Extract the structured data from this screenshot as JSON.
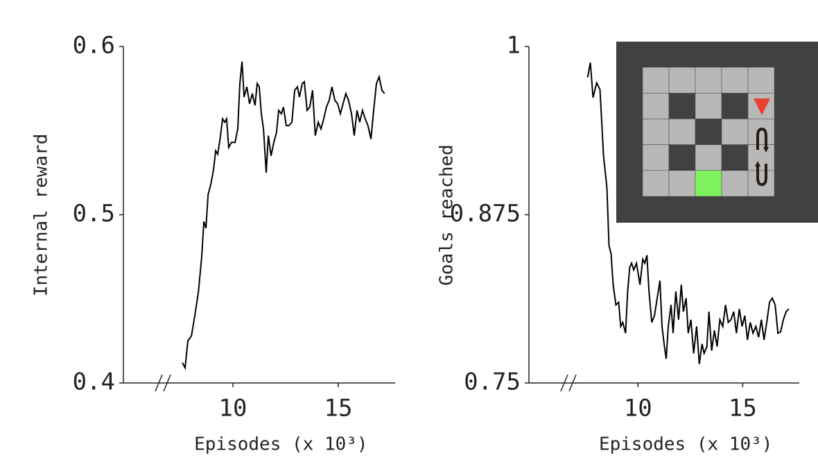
{
  "chart_data": [
    {
      "type": "line",
      "ylabel": "Internal reward",
      "xlabel": "Episodes (x 10³)",
      "xlim": [
        4.8,
        17.7
      ],
      "xticks": [
        10,
        15
      ],
      "ylim": [
        0.4,
        0.6
      ],
      "yticks": [
        0.4,
        0.5,
        0.6
      ],
      "color": "#000000",
      "x": [
        7.6,
        7.73,
        7.86,
        8.03,
        8.19,
        8.36,
        8.52,
        8.62,
        8.72,
        8.82,
        8.95,
        9.08,
        9.18,
        9.28,
        9.41,
        9.51,
        9.61,
        9.7,
        9.8,
        9.93,
        10.1,
        10.23,
        10.33,
        10.43,
        10.53,
        10.66,
        10.79,
        10.92,
        11.05,
        11.15,
        11.25,
        11.35,
        11.45,
        11.58,
        11.68,
        11.81,
        11.94,
        12.07,
        12.17,
        12.3,
        12.4,
        12.53,
        12.66,
        12.8,
        12.93,
        13.06,
        13.16,
        13.29,
        13.39,
        13.52,
        13.65,
        13.78,
        13.91,
        14.05,
        14.18,
        14.31,
        14.44,
        14.57,
        14.7,
        14.84,
        14.97,
        15.1,
        15.23,
        15.36,
        15.49,
        15.63,
        15.76,
        15.89,
        16.02,
        16.15,
        16.28,
        16.41,
        16.55,
        16.68,
        16.81,
        16.94,
        17.07,
        17.2
      ],
      "values": [
        0.412,
        0.409,
        0.425,
        0.428,
        0.44,
        0.454,
        0.475,
        0.496,
        0.492,
        0.512,
        0.518,
        0.527,
        0.538,
        0.536,
        0.547,
        0.557,
        0.555,
        0.557,
        0.54,
        0.543,
        0.543,
        0.551,
        0.578,
        0.591,
        0.57,
        0.576,
        0.566,
        0.572,
        0.565,
        0.578,
        0.576,
        0.56,
        0.551,
        0.525,
        0.547,
        0.535,
        0.543,
        0.549,
        0.562,
        0.56,
        0.564,
        0.553,
        0.553,
        0.555,
        0.574,
        0.576,
        0.57,
        0.578,
        0.579,
        0.562,
        0.564,
        0.574,
        0.547,
        0.555,
        0.551,
        0.557,
        0.564,
        0.568,
        0.576,
        0.568,
        0.566,
        0.56,
        0.566,
        0.572,
        0.568,
        0.56,
        0.547,
        0.562,
        0.555,
        0.562,
        0.557,
        0.553,
        0.545,
        0.562,
        0.578,
        0.582,
        0.574,
        0.572
      ]
    },
    {
      "type": "line",
      "ylabel": "Goals reached",
      "xlabel": "Episodes (x 10³)",
      "xlim": [
        4.8,
        17.7
      ],
      "xticks": [
        10,
        15
      ],
      "ylim": [
        0.75,
        1
      ],
      "yticks": [
        0.75,
        0.875,
        1
      ],
      "color": "#000000",
      "x": [
        7.6,
        7.73,
        7.86,
        8.03,
        8.19,
        8.36,
        8.52,
        8.62,
        8.72,
        8.82,
        8.95,
        9.08,
        9.18,
        9.28,
        9.41,
        9.51,
        9.61,
        9.7,
        9.8,
        9.93,
        10.1,
        10.23,
        10.33,
        10.43,
        10.53,
        10.66,
        10.79,
        10.92,
        11.05,
        11.15,
        11.25,
        11.35,
        11.45,
        11.58,
        11.68,
        11.81,
        11.94,
        12.07,
        12.17,
        12.3,
        12.4,
        12.53,
        12.66,
        12.8,
        12.93,
        13.06,
        13.16,
        13.29,
        13.39,
        13.52,
        13.65,
        13.78,
        13.91,
        14.05,
        14.18,
        14.31,
        14.44,
        14.57,
        14.7,
        14.84,
        14.97,
        15.1,
        15.23,
        15.36,
        15.49,
        15.63,
        15.76,
        15.89,
        16.02,
        16.15,
        16.28,
        16.41,
        16.55,
        16.68,
        16.81,
        16.94,
        17.07,
        17.2
      ],
      "values": [
        0.977,
        0.988,
        0.962,
        0.973,
        0.968,
        0.919,
        0.895,
        0.852,
        0.846,
        0.823,
        0.808,
        0.81,
        0.792,
        0.795,
        0.787,
        0.818,
        0.836,
        0.839,
        0.834,
        0.839,
        0.823,
        0.842,
        0.839,
        0.845,
        0.818,
        0.795,
        0.8,
        0.813,
        0.826,
        0.792,
        0.779,
        0.768,
        0.792,
        0.808,
        0.787,
        0.818,
        0.797,
        0.823,
        0.803,
        0.813,
        0.787,
        0.797,
        0.772,
        0.792,
        0.764,
        0.779,
        0.772,
        0.777,
        0.803,
        0.774,
        0.789,
        0.777,
        0.797,
        0.792,
        0.808,
        0.795,
        0.797,
        0.803,
        0.787,
        0.805,
        0.792,
        0.8,
        0.782,
        0.795,
        0.787,
        0.792,
        0.784,
        0.797,
        0.782,
        0.795,
        0.81,
        0.813,
        0.808,
        0.787,
        0.788,
        0.797,
        0.803,
        0.805
      ]
    }
  ]
}
